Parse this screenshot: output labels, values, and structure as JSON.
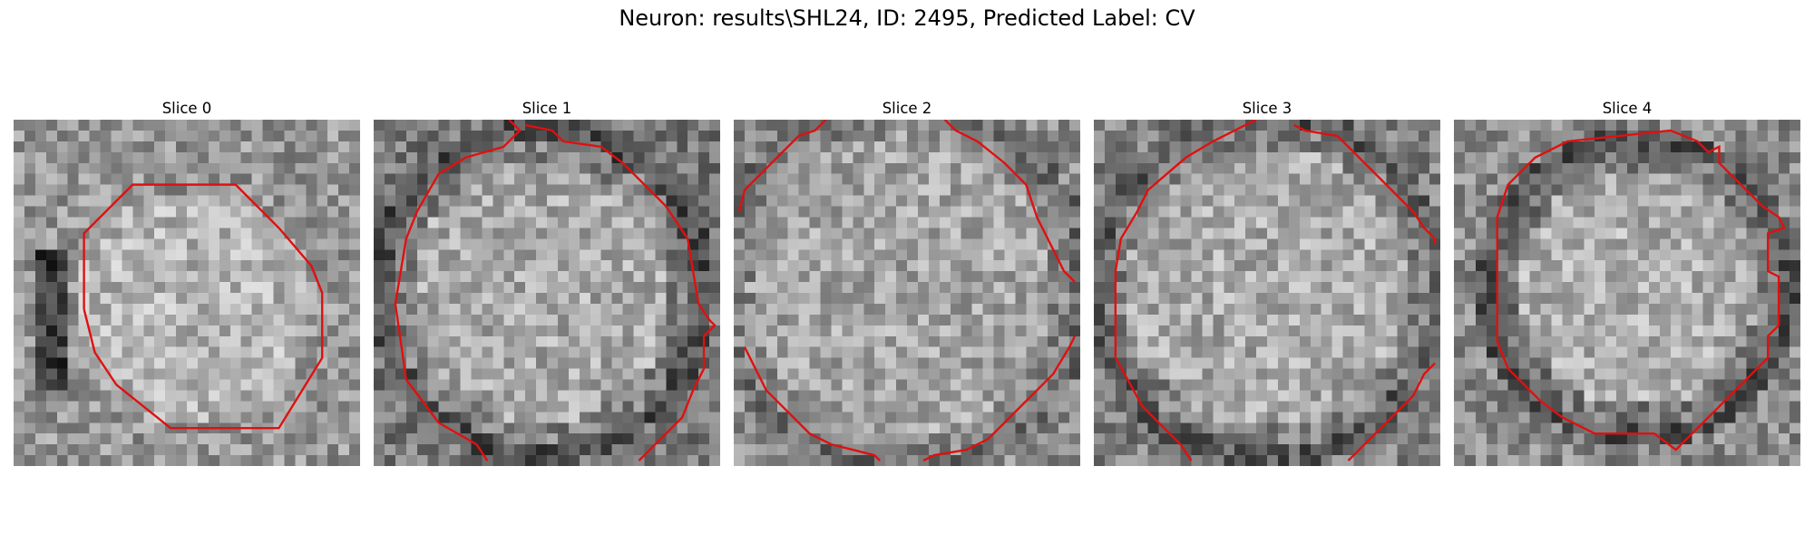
{
  "figure": {
    "title": "Neuron: results\\SHL24, ID: 2495, Predicted Label: CV"
  },
  "panels": [
    {
      "title": "Slice 0",
      "seed": 11,
      "outline_color": "#e01010"
    },
    {
      "title": "Slice 1",
      "seed": 23,
      "outline_color": "#e01010"
    },
    {
      "title": "Slice 2",
      "seed": 37,
      "outline_color": "#e01010"
    },
    {
      "title": "Slice 3",
      "seed": 41,
      "outline_color": "#e01010"
    },
    {
      "title": "Slice 4",
      "seed": 59,
      "outline_color": "#e01010"
    }
  ]
}
